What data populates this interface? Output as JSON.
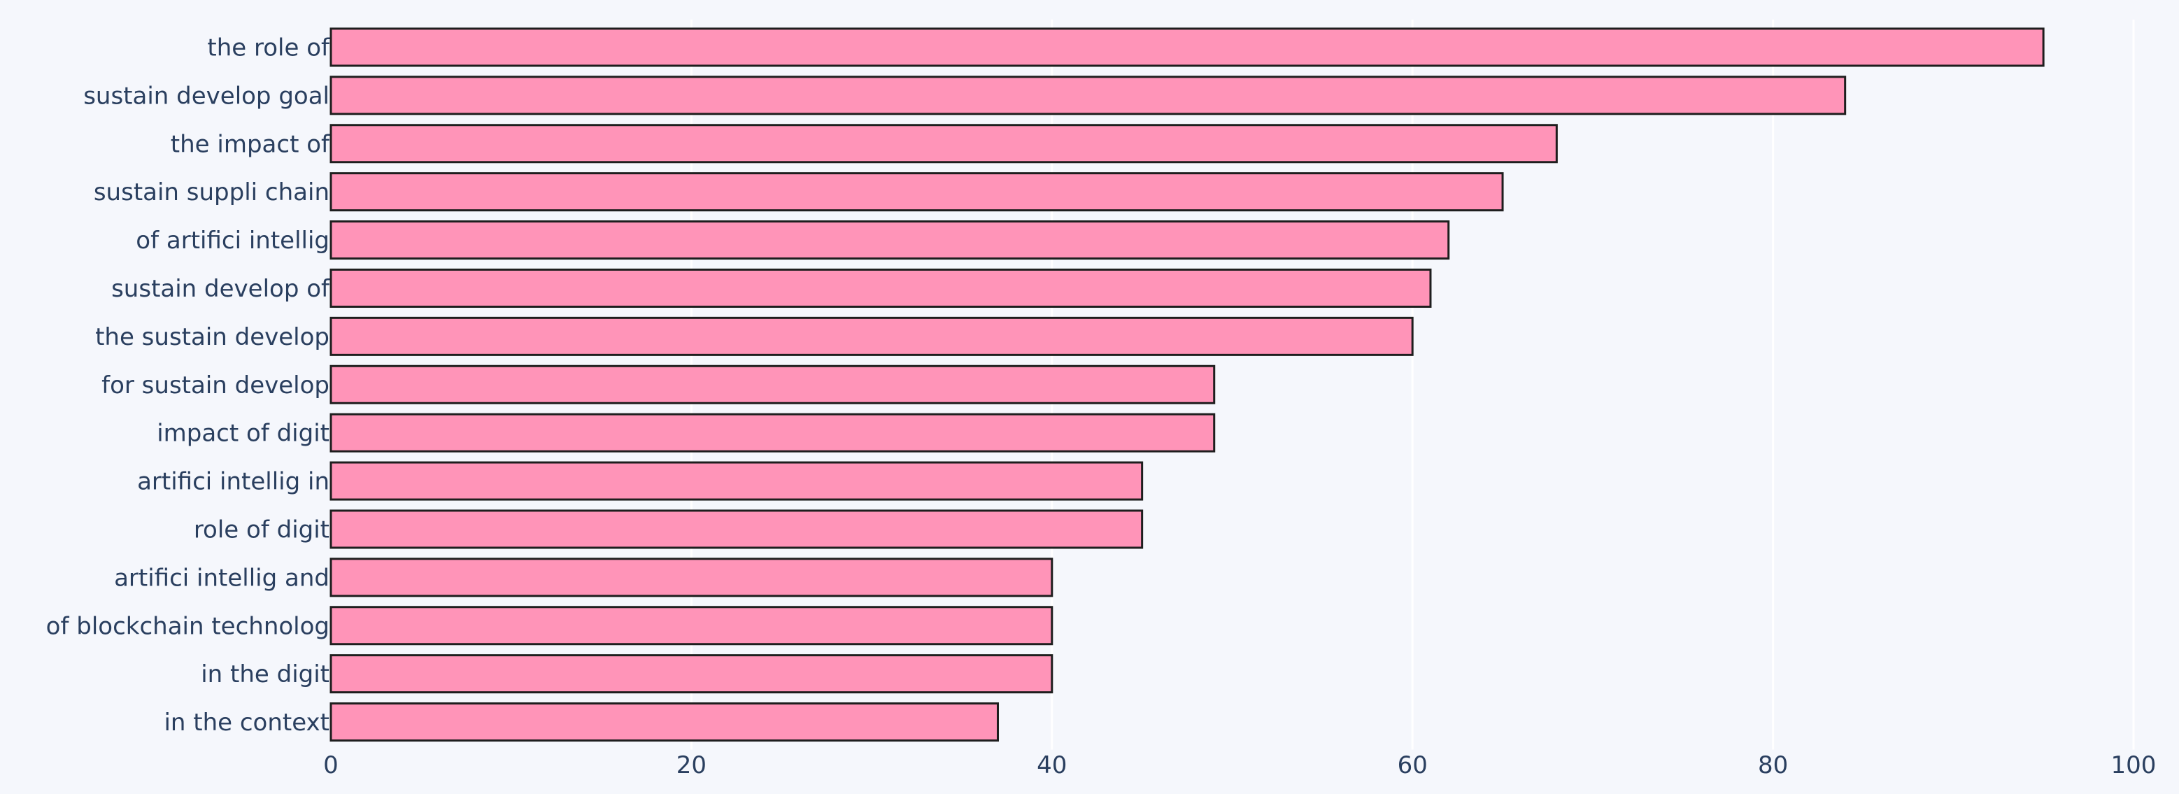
{
  "chart_data": {
    "type": "bar",
    "orientation": "horizontal",
    "categories": [
      "the role of",
      "sustain develop goal",
      "the impact of",
      "sustain suppli chain",
      "of artifici intellig",
      "sustain develop of",
      "the sustain develop",
      "for sustain develop",
      "impact of digit",
      "artifici intellig in",
      "role of digit",
      "artifici intellig and",
      "of blockchain technolog",
      "in the digit",
      "in the context"
    ],
    "values": [
      95,
      84,
      68,
      65,
      62,
      61,
      60,
      49,
      49,
      45,
      45,
      40,
      40,
      40,
      37
    ],
    "xlim": [
      0,
      100
    ],
    "xticks": [
      "0",
      "20",
      "40",
      "60",
      "80",
      "100"
    ],
    "title": "",
    "xlabel": "",
    "ylabel": "",
    "grid": "vertical",
    "bar_color": "#ff94b8",
    "bar_edge_color": "#1e1e1e",
    "background_color": "#f5f7fc",
    "text_color": "#2a3f5f"
  }
}
